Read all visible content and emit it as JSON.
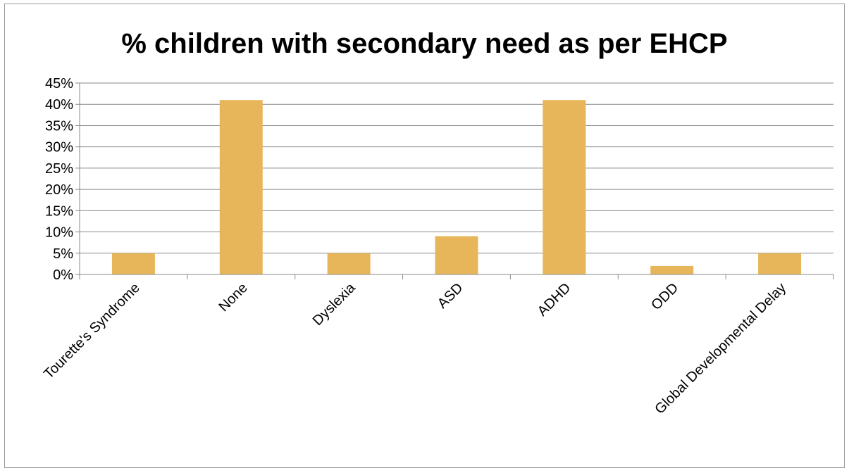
{
  "chart_data": {
    "type": "bar",
    "title": "% children with secondary need as per EHCP",
    "xlabel": "",
    "ylabel": "",
    "categories": [
      "Tourette's Syndrome",
      "None",
      "Dyslexia",
      "ASD",
      "ADHD",
      "ODD",
      "Global Developmental Delay"
    ],
    "values": [
      5,
      41,
      5,
      9,
      41,
      2,
      5
    ],
    "ylim": [
      0,
      45
    ],
    "y_ticks": [
      0,
      5,
      10,
      15,
      20,
      25,
      30,
      35,
      40,
      45
    ],
    "y_tick_labels": [
      "0%",
      "5%",
      "10%",
      "15%",
      "20%",
      "25%",
      "30%",
      "35%",
      "40%",
      "45%"
    ],
    "grid": true,
    "legend": "none",
    "colors": {
      "bar": "#e8b65a",
      "grid": "#8a8a8a",
      "axis": "#8a8a8a",
      "frame": "#9a9a9a"
    }
  }
}
